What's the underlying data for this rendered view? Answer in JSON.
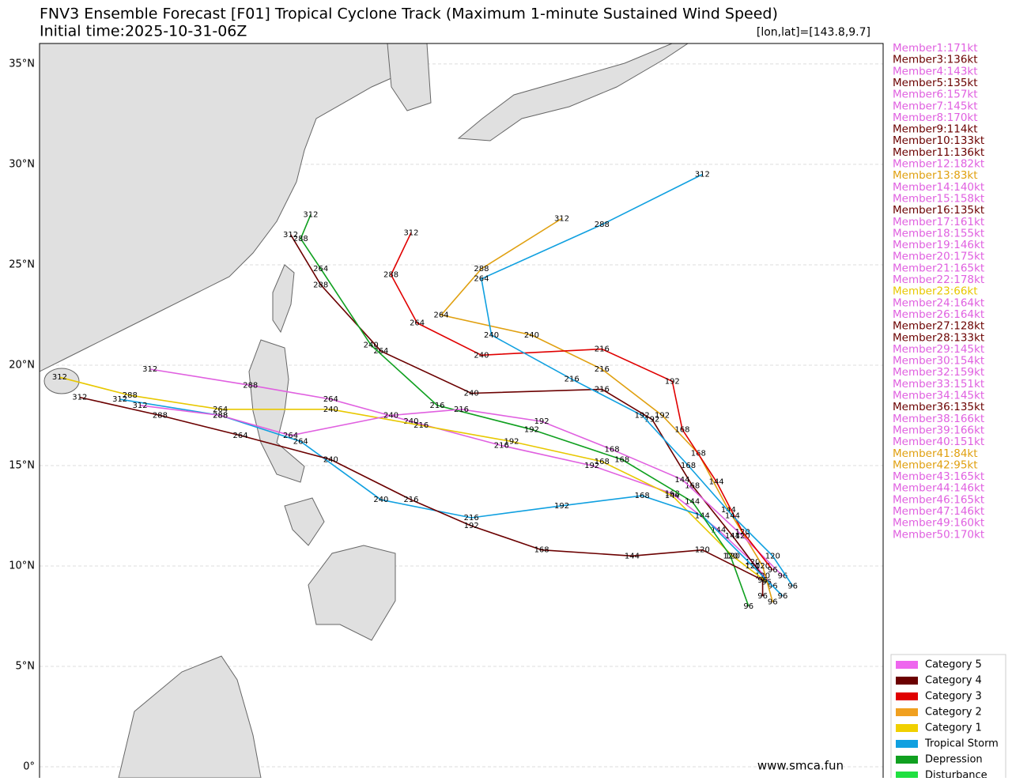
{
  "map": {
    "title": "FNV3 Ensemble Forecast [F01] Tropical Cyclone Track (Maximum 1-minute Sustained Wind Speed)",
    "subtitle": "Initial time:2025-10-31-06Z",
    "cursor": "[lon,lat]=[143.8,9.7]",
    "watermark": "www.smca.fun",
    "xlim": [
      109,
      151
    ],
    "ylim": [
      -0.55,
      36.02
    ],
    "yticks": [
      {
        "value": 35,
        "label": "35°N"
      },
      {
        "value": 30,
        "label": "30°N"
      },
      {
        "value": 25,
        "label": "25°N"
      },
      {
        "value": 20,
        "label": "20°N"
      },
      {
        "value": 15,
        "label": "15°N"
      },
      {
        "value": 10,
        "label": "10°N"
      },
      {
        "value": 5,
        "label": "5°N"
      },
      {
        "value": 0,
        "label": "0°"
      }
    ],
    "members": [
      {
        "label": "Member1:171kt",
        "color": "#e060e0"
      },
      {
        "label": "Member3:136kt",
        "color": "#6b0000"
      },
      {
        "label": "Member4:143kt",
        "color": "#e060e0"
      },
      {
        "label": "Member5:135kt",
        "color": "#6b0000"
      },
      {
        "label": "Member6:157kt",
        "color": "#e060e0"
      },
      {
        "label": "Member7:145kt",
        "color": "#e060e0"
      },
      {
        "label": "Member8:170kt",
        "color": "#e060e0"
      },
      {
        "label": "Member9:114kt",
        "color": "#6b0000"
      },
      {
        "label": "Member10:133kt",
        "color": "#6b0000"
      },
      {
        "label": "Member11:136kt",
        "color": "#6b0000"
      },
      {
        "label": "Member12:182kt",
        "color": "#e060e0"
      },
      {
        "label": "Member13:83kt",
        "color": "#e0a010"
      },
      {
        "label": "Member14:140kt",
        "color": "#e060e0"
      },
      {
        "label": "Member15:158kt",
        "color": "#e060e0"
      },
      {
        "label": "Member16:135kt",
        "color": "#6b0000"
      },
      {
        "label": "Member17:161kt",
        "color": "#e060e0"
      },
      {
        "label": "Member18:155kt",
        "color": "#e060e0"
      },
      {
        "label": "Member19:146kt",
        "color": "#e060e0"
      },
      {
        "label": "Member20:175kt",
        "color": "#e060e0"
      },
      {
        "label": "Member21:165kt",
        "color": "#e060e0"
      },
      {
        "label": "Member22:178kt",
        "color": "#e060e0"
      },
      {
        "label": "Member23:66kt",
        "color": "#e8c800"
      },
      {
        "label": "Member24:164kt",
        "color": "#e060e0"
      },
      {
        "label": "Member26:164kt",
        "color": "#e060e0"
      },
      {
        "label": "Member27:128kt",
        "color": "#6b0000"
      },
      {
        "label": "Member28:133kt",
        "color": "#6b0000"
      },
      {
        "label": "Member29:145kt",
        "color": "#e060e0"
      },
      {
        "label": "Member30:154kt",
        "color": "#e060e0"
      },
      {
        "label": "Member32:159kt",
        "color": "#e060e0"
      },
      {
        "label": "Member33:151kt",
        "color": "#e060e0"
      },
      {
        "label": "Member34:145kt",
        "color": "#e060e0"
      },
      {
        "label": "Member36:135kt",
        "color": "#6b0000"
      },
      {
        "label": "Member38:166kt",
        "color": "#e060e0"
      },
      {
        "label": "Member39:166kt",
        "color": "#e060e0"
      },
      {
        "label": "Member40:151kt",
        "color": "#e060e0"
      },
      {
        "label": "Member41:84kt",
        "color": "#e0a010"
      },
      {
        "label": "Member42:95kt",
        "color": "#e0a010"
      },
      {
        "label": "Member43:165kt",
        "color": "#e060e0"
      },
      {
        "label": "Member44:146kt",
        "color": "#e060e0"
      },
      {
        "label": "Member46:165kt",
        "color": "#e060e0"
      },
      {
        "label": "Member47:146kt",
        "color": "#e060e0"
      },
      {
        "label": "Member49:160kt",
        "color": "#e060e0"
      },
      {
        "label": "Member50:170kt",
        "color": "#e060e0"
      }
    ],
    "legend": [
      {
        "label": "Category 5",
        "color": "#ee66ee"
      },
      {
        "label": "Category 4",
        "color": "#6b0000"
      },
      {
        "label": "Category 3",
        "color": "#e00000"
      },
      {
        "label": "Category 2",
        "color": "#f0a020"
      },
      {
        "label": "Category 1",
        "color": "#f0d000"
      },
      {
        "label": "Tropical Storm",
        "color": "#10a0e0"
      },
      {
        "label": "Depression",
        "color": "#10a020"
      },
      {
        "label": "Disturbance",
        "color": "#20e040"
      }
    ],
    "tracks": [
      {
        "color": "#e060e0",
        "lon": [
          145.5,
          144.5,
          142.8,
          140.5,
          136.5,
          132,
          127.5,
          123.5,
          119.5,
          114.5
        ],
        "lat": [
          9.0,
          10.2,
          11.8,
          13.6,
          15.0,
          16.0,
          17.2,
          18.3,
          19.0,
          19.8
        ],
        "hours": [
          96,
          120,
          144,
          168,
          192,
          216,
          240,
          264,
          288,
          312
        ]
      },
      {
        "color": "#6b0000",
        "lon": [
          145,
          145,
          143.5,
          141.5,
          139.5,
          137,
          130.5,
          126,
          123,
          121.5
        ],
        "lat": [
          8.5,
          9.5,
          11.5,
          14.0,
          17.3,
          18.8,
          18.6,
          20.7,
          24.0,
          26.5
        ],
        "hours": [
          96,
          120,
          144,
          168,
          192,
          216,
          240,
          264,
          288,
          312
        ]
      },
      {
        "color": "#e8c800",
        "lon": [
          145.2,
          143.5,
          140.5,
          137,
          132.5,
          128,
          123.5,
          118,
          113.5,
          110
        ],
        "lat": [
          9.2,
          10.5,
          13.5,
          15.2,
          16.2,
          17.0,
          17.8,
          17.8,
          18.5,
          19.4
        ],
        "hours": [
          96,
          120,
          144,
          168,
          192,
          216,
          240,
          264,
          288,
          312
        ]
      },
      {
        "color": "#10a0e0",
        "lon": [
          146,
          144.5,
          142,
          139,
          135,
          130.5,
          126,
          122,
          118,
          113
        ],
        "lat": [
          8.5,
          10,
          12.5,
          13.5,
          13.0,
          12.4,
          13.3,
          16.2,
          17.5,
          18.3
        ],
        "hours": [
          96,
          120,
          144,
          168,
          192,
          216,
          240,
          264,
          288,
          312
        ]
      },
      {
        "color": "#10a020",
        "lon": [
          144.3,
          143.4,
          141.5,
          138,
          133.5,
          128.8,
          125.5,
          123,
          122,
          122.5
        ],
        "lat": [
          8.0,
          10.5,
          13.2,
          15.3,
          16.8,
          18.0,
          21,
          24.8,
          26.3,
          27.5
        ],
        "hours": [
          96,
          120,
          144,
          168,
          192,
          216,
          240,
          264,
          288,
          312
        ]
      },
      {
        "color": "#e0a010",
        "lon": [
          145.5,
          145,
          143.3,
          141.8,
          140,
          137,
          133.5,
          129,
          131,
          135
        ],
        "lat": [
          8.2,
          10,
          12.8,
          15.6,
          17.5,
          19.8,
          21.5,
          22.5,
          24.8,
          27.3
        ],
        "hours": [
          96,
          120,
          144,
          168,
          192,
          216,
          240,
          264,
          288,
          312
        ]
      },
      {
        "color": "#6b0000",
        "lon": [
          145,
          142,
          138.5,
          134,
          130.5,
          127.5,
          123.5,
          119,
          115,
          111
        ],
        "lat": [
          9.3,
          10.8,
          10.5,
          10.8,
          12.0,
          13.3,
          15.3,
          16.5,
          17.5,
          18.4
        ],
        "hours": [
          96,
          120,
          144,
          168,
          192,
          216,
          240,
          264,
          288,
          312
        ]
      },
      {
        "color": "#e060e0",
        "lon": [
          146,
          144,
          141,
          137.5,
          134,
          130,
          126.5,
          121.5,
          118,
          114
        ],
        "lat": [
          9.5,
          11.5,
          14.3,
          15.8,
          17.2,
          17.8,
          17.5,
          16.5,
          17.5,
          18
        ],
        "hours": [
          96,
          120,
          144,
          168,
          192,
          216,
          240,
          264,
          288,
          312
        ]
      },
      {
        "color": "#e00000",
        "lon": [
          145.5,
          144,
          142.7,
          141,
          140.5,
          137,
          131,
          127.8,
          126.5,
          127.5
        ],
        "lat": [
          9.8,
          11.7,
          14.2,
          16.8,
          19.2,
          20.8,
          20.5,
          22.1,
          24.5,
          26.6
        ],
        "hours": [
          96,
          120,
          144,
          168,
          192,
          216,
          240,
          264,
          288,
          312
        ]
      },
      {
        "color": "#10a0e0",
        "lon": [
          146.5,
          145.5,
          143.5,
          141.3,
          139,
          135.5,
          131.5,
          131,
          137,
          142
        ],
        "lat": [
          9.0,
          10.5,
          12.5,
          15.0,
          17.5,
          19.3,
          21.5,
          24.3,
          27,
          29.5
        ],
        "hours": [
          96,
          120,
          144,
          168,
          192,
          216,
          240,
          264,
          288,
          312
        ]
      }
    ]
  }
}
